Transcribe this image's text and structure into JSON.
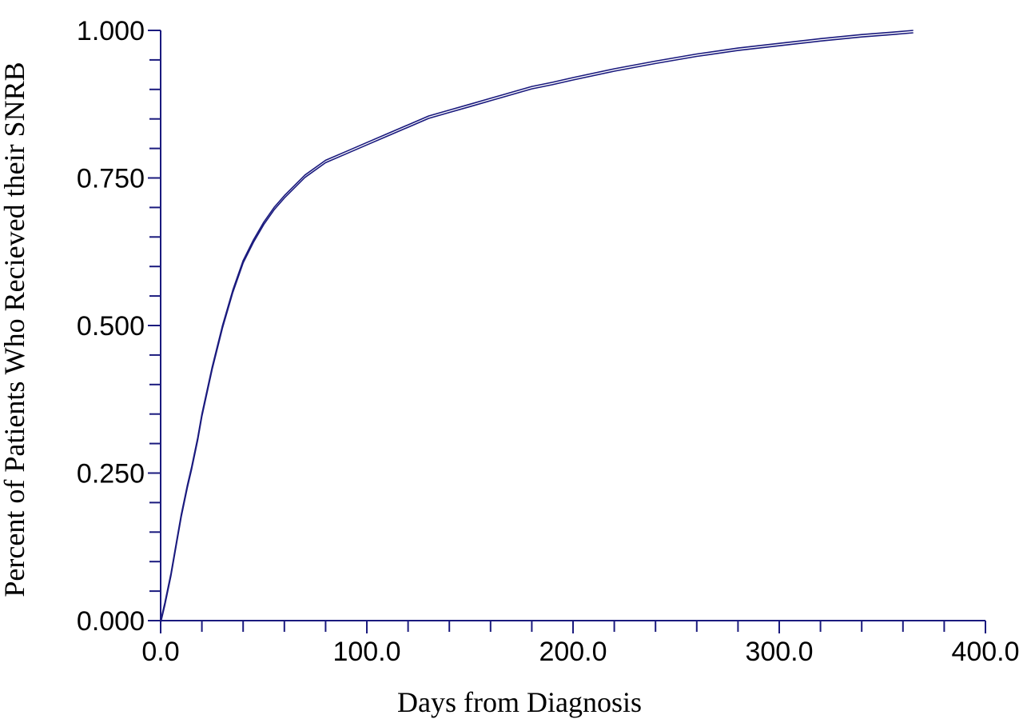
{
  "chart_data": {
    "type": "line",
    "title": "",
    "xlabel": "Days from Diagnosis",
    "ylabel": "Percent of Patients Who Recieved their SNRB",
    "xlim": [
      0,
      400
    ],
    "ylim": [
      0,
      1
    ],
    "x_ticks": [
      "0.0",
      "100.0",
      "200.0",
      "300.0",
      "400.0"
    ],
    "y_ticks": [
      "0.000",
      "0.250",
      "0.500",
      "0.750",
      "1.000"
    ],
    "grid": false,
    "legend": "none",
    "line_color": "#1a1a7e",
    "series": [
      {
        "x": [
          0,
          2,
          5,
          8,
          10,
          13,
          15,
          18,
          20,
          25,
          30,
          35,
          40,
          45,
          50,
          55,
          60,
          70,
          80,
          90,
          100,
          110,
          120,
          130,
          140,
          150,
          160,
          170,
          180,
          190,
          200,
          220,
          240,
          260,
          280,
          300,
          320,
          340,
          355,
          365
        ],
        "y": [
          0.0,
          0.03,
          0.08,
          0.14,
          0.18,
          0.23,
          0.26,
          0.31,
          0.35,
          0.43,
          0.5,
          0.56,
          0.61,
          0.645,
          0.675,
          0.7,
          0.72,
          0.755,
          0.78,
          0.795,
          0.81,
          0.825,
          0.84,
          0.855,
          0.865,
          0.875,
          0.885,
          0.895,
          0.905,
          0.912,
          0.92,
          0.935,
          0.948,
          0.96,
          0.97,
          0.978,
          0.986,
          0.993,
          0.997,
          1.0
        ]
      }
    ]
  }
}
